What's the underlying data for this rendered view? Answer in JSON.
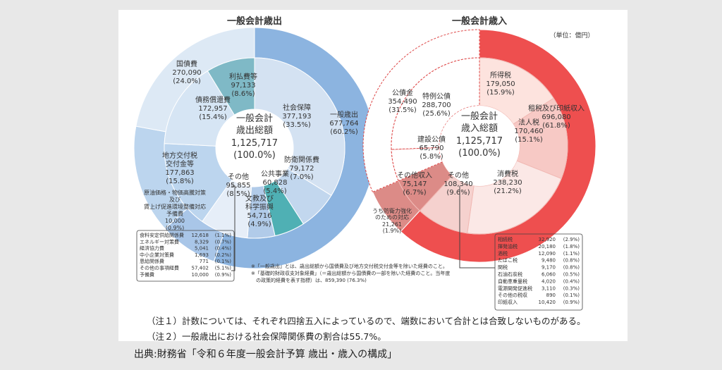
{
  "source": "出典:財務省「令和６年度一般会計予算 歳出・歳入の構成」",
  "notes": {
    "note1": "（注１）計数については、それぞれ四捨五入によっているので、端数において合計とは合致しないものがある。",
    "note2": "（注２）一般歳出における社会保障関係費の割合は55.7%。"
  },
  "footnotes": {
    "f1": "※「一般歳出」とは、歳出総額から国債費及び地方交付税交付金等を除いた経費のこと。",
    "f2": "※「基礎的財政収支対象経費」（＝歳出総額から国債費の一部を除いた経費のこと。当年度",
    "f3": "　の政策的経費を表す指標）は、859,390 (76.3%)"
  },
  "unit": "（単位：億円）",
  "chart_data": [
    {
      "type": "pie",
      "title": "一般会計歳出",
      "center": {
        "label1": "一般会計",
        "label2": "歳出総額",
        "value": "1,125,717",
        "pct": "(100.0%)"
      },
      "outer": [
        {
          "name": "一般歳出",
          "value": 677764,
          "value_label": "677,764",
          "pct": "(60.2%)",
          "color": "#8cb4e0"
        },
        {
          "name": "その他",
          "value": 95855,
          "value_label": "95,855",
          "pct": "(8.5%)",
          "color": "#a9c6e8"
        },
        {
          "name": "地方交付税交付金等",
          "value": 177863,
          "value_label": "177,863",
          "pct": "(15.8%)",
          "color": "#bcd5ee"
        },
        {
          "name": "国債費",
          "value": 270090,
          "value_label": "270,090",
          "pct": "(24.0%)",
          "color": "#dde9f5"
        }
      ],
      "inner": [
        {
          "name": "社会保障",
          "value": 377193,
          "value_label": "377,193",
          "pct": "(33.5%)",
          "color": "#d4e2f2"
        },
        {
          "name": "防衛関係費",
          "value": 79172,
          "value_label": "79,172",
          "pct": "(7.0%)",
          "color": "#c2d7ee"
        },
        {
          "name": "公共事業",
          "value": 60828,
          "value_label": "60,828",
          "pct": "(5.4%)",
          "color": "#4fb0b4"
        },
        {
          "name": "文教及び科学振興",
          "value": 54716,
          "value_label": "54,716",
          "pct": "(4.9%)",
          "color": "#b1cbe9"
        },
        {
          "name": "その他",
          "value": 95855,
          "value_label": "95,855",
          "pct": "(8.5%)",
          "color": "#e6eef8"
        },
        {
          "name": "地方交付税交付金等",
          "value": 177863,
          "value_label": "177,863",
          "pct": "(15.8%)",
          "color": "#bcd5ee"
        },
        {
          "name": "債務償還費",
          "value": 172957,
          "value_label": "172,957",
          "pct": "(15.4%)",
          "color": "#d6e5f4"
        },
        {
          "name": "利払費等",
          "value": 97133,
          "value_label": "97,133",
          "pct": "(8.6%)",
          "color": "#7fb9c6"
        }
      ],
      "other_label": "原油価格・物価高騰対策及び賃上げ促進環境整備対応予備費",
      "other_value": "10,000",
      "other_pct": "(0.9%)",
      "breakdown": [
        {
          "name": "食料安定供給関係費",
          "value": "12,618",
          "pct": "(1.1%)"
        },
        {
          "name": "エネルギー対策費",
          "value": "8,329",
          "pct": "(0.7%)"
        },
        {
          "name": "経済協力費",
          "value": "5,041",
          "pct": "(0.4%)"
        },
        {
          "name": "中小企業対策費",
          "value": "1,693",
          "pct": "(0.2%)"
        },
        {
          "name": "恩給関係費",
          "value": "771",
          "pct": "(0.1%)"
        },
        {
          "name": "その他の事項経費",
          "value": "57,402",
          "pct": "(5.1%)"
        },
        {
          "name": "予備費",
          "value": "10,000",
          "pct": "(0.9%)"
        }
      ]
    },
    {
      "type": "pie",
      "title": "一般会計歳入",
      "center": {
        "label1": "一般会計",
        "label2": "歳入総額",
        "value": "1,125,717",
        "pct": "(100.0%)"
      },
      "outer": [
        {
          "name": "租税及び印紙収入",
          "value": 696080,
          "value_label": "696,080",
          "pct": "(61.8%)",
          "color": "#ee4f4f"
        },
        {
          "name": "その他収入",
          "value": 75147,
          "value_label": "75,147",
          "pct": "(6.7%)",
          "color": "#dc8b87"
        },
        {
          "name": "公債金",
          "value": 354490,
          "value_label": "354,490",
          "pct": "(31.5%)",
          "color": "#ffffff"
        }
      ],
      "inner": [
        {
          "name": "所得税",
          "value": 179050,
          "value_label": "179,050",
          "pct": "(15.9%)",
          "color": "#fde3de"
        },
        {
          "name": "法人税",
          "value": 170460,
          "value_label": "170,460",
          "pct": "(15.1%)",
          "color": "#f7c9c5"
        },
        {
          "name": "消費税",
          "value": 238230,
          "value_label": "238,230",
          "pct": "(21.2%)",
          "color": "#fbe8e6"
        },
        {
          "name": "その他",
          "value": 108340,
          "value_label": "108,340",
          "pct": "(9.6%)",
          "color": "#f5d1ce"
        },
        {
          "name": "その他収入",
          "value": 75147,
          "value_label": "75,147",
          "pct": "(6.7%)",
          "color": "#dc8b87"
        },
        {
          "name": "建設公債",
          "value": 65790,
          "value_label": "65,790",
          "pct": "(5.8%)",
          "color": "#ffffff"
        },
        {
          "name": "特例公債",
          "value": 288700,
          "value_label": "288,700",
          "pct": "(25.6%)",
          "color": "#ffffff"
        }
      ],
      "sub_label": "うち防衛力強化のための対応",
      "sub_value": "21,261",
      "sub_pct": "(1.9%)",
      "breakdown": [
        {
          "name": "相続税",
          "value": "32,920",
          "pct": "(2.9%)"
        },
        {
          "name": "揮発油税",
          "value": "20,180",
          "pct": "(1.8%)"
        },
        {
          "name": "酒税",
          "value": "12,090",
          "pct": "(1.1%)"
        },
        {
          "name": "たばこ税",
          "value": "9,480",
          "pct": "(0.8%)"
        },
        {
          "name": "関税",
          "value": "9,170",
          "pct": "(0.8%)"
        },
        {
          "name": "石油石炭税",
          "value": "6,060",
          "pct": "(0.5%)"
        },
        {
          "name": "自動車重量税",
          "value": "4,020",
          "pct": "(0.4%)"
        },
        {
          "name": "電源開発促進税",
          "value": "3,110",
          "pct": "(0.3%)"
        },
        {
          "name": "その他の税収",
          "value": "890",
          "pct": "(0.1%)"
        },
        {
          "name": "印紙収入",
          "value": "10,420",
          "pct": "(0.9%)"
        }
      ]
    }
  ]
}
